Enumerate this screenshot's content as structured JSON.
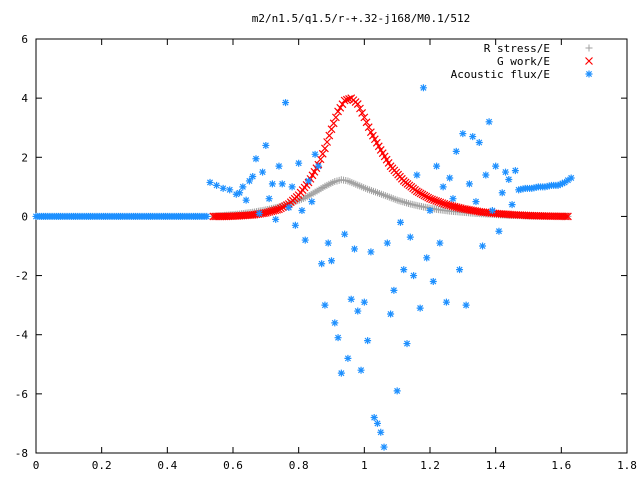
{
  "chart_data": {
    "type": "scatter",
    "title": "m2/n1.5/q1.5/r-+.32-j168/M0.1/512",
    "xlabel": "",
    "ylabel": "",
    "xlim": [
      0,
      1.8
    ],
    "ylim": [
      -8,
      6
    ],
    "x_ticks": [
      "0",
      "0.2",
      "0.4",
      "0.6",
      "0.8",
      "1",
      "1.2",
      "1.4",
      "1.6",
      "1.8"
    ],
    "y_ticks": [
      "-8",
      "-6",
      "-4",
      "-2",
      "0",
      "2",
      "4",
      "6"
    ],
    "grid": false,
    "legend_position": "top-right",
    "series": [
      {
        "name": "R stress/E",
        "color": "#a0a0a0",
        "marker": "plus",
        "points": [
          [
            0.54,
            0.0
          ],
          [
            0.58,
            0.04
          ],
          [
            0.62,
            0.08
          ],
          [
            0.66,
            0.14
          ],
          [
            0.7,
            0.22
          ],
          [
            0.74,
            0.32
          ],
          [
            0.78,
            0.46
          ],
          [
            0.82,
            0.63
          ],
          [
            0.85,
            0.82
          ],
          [
            0.88,
            1.02
          ],
          [
            0.91,
            1.18
          ],
          [
            0.93,
            1.24
          ],
          [
            0.95,
            1.2
          ],
          [
            0.98,
            1.06
          ],
          [
            1.01,
            0.92
          ],
          [
            1.04,
            0.8
          ],
          [
            1.07,
            0.68
          ],
          [
            1.1,
            0.55
          ],
          [
            1.14,
            0.42
          ],
          [
            1.18,
            0.32
          ],
          [
            1.22,
            0.24
          ],
          [
            1.26,
            0.18
          ],
          [
            1.3,
            0.14
          ],
          [
            1.34,
            0.1
          ],
          [
            1.38,
            0.08
          ],
          [
            1.42,
            0.05
          ],
          [
            1.46,
            0.03
          ],
          [
            1.5,
            0.02
          ],
          [
            1.55,
            0.01
          ],
          [
            1.6,
            0.0
          ],
          [
            1.62,
            0.0
          ]
        ]
      },
      {
        "name": "G work/E",
        "color": "#ff0000",
        "marker": "cross",
        "points": [
          [
            0.54,
            0.0
          ],
          [
            0.58,
            0.0
          ],
          [
            0.62,
            0.02
          ],
          [
            0.66,
            0.05
          ],
          [
            0.7,
            0.12
          ],
          [
            0.74,
            0.24
          ],
          [
            0.77,
            0.42
          ],
          [
            0.8,
            0.72
          ],
          [
            0.83,
            1.15
          ],
          [
            0.86,
            1.75
          ],
          [
            0.88,
            2.3
          ],
          [
            0.9,
            2.95
          ],
          [
            0.92,
            3.55
          ],
          [
            0.94,
            3.92
          ],
          [
            0.96,
            4.0
          ],
          [
            0.98,
            3.8
          ],
          [
            1.0,
            3.35
          ],
          [
            1.02,
            2.85
          ],
          [
            1.05,
            2.25
          ],
          [
            1.08,
            1.7
          ],
          [
            1.12,
            1.2
          ],
          [
            1.16,
            0.85
          ],
          [
            1.2,
            0.6
          ],
          [
            1.25,
            0.4
          ],
          [
            1.3,
            0.26
          ],
          [
            1.35,
            0.16
          ],
          [
            1.4,
            0.1
          ],
          [
            1.45,
            0.06
          ],
          [
            1.5,
            0.03
          ],
          [
            1.56,
            0.01
          ],
          [
            1.62,
            0.0
          ]
        ]
      },
      {
        "name": "Acoustic flux/E",
        "color": "#1e90ff",
        "marker": "star",
        "points": [
          [
            0.0,
            0.0
          ],
          [
            0.04,
            0.0
          ],
          [
            0.08,
            0.0
          ],
          [
            0.12,
            0.0
          ],
          [
            0.16,
            0.0
          ],
          [
            0.2,
            0.0
          ],
          [
            0.24,
            0.0
          ],
          [
            0.28,
            0.0
          ],
          [
            0.32,
            0.0
          ],
          [
            0.36,
            0.0
          ],
          [
            0.4,
            0.0
          ],
          [
            0.44,
            0.0
          ],
          [
            0.48,
            0.0
          ],
          [
            0.52,
            0.0
          ],
          [
            0.53,
            1.15
          ],
          [
            0.55,
            1.05
          ],
          [
            0.57,
            0.95
          ],
          [
            0.59,
            0.9
          ],
          [
            0.61,
            0.75
          ],
          [
            0.62,
            0.8
          ],
          [
            0.63,
            1.0
          ],
          [
            0.64,
            0.55
          ],
          [
            0.65,
            1.2
          ],
          [
            0.66,
            1.35
          ],
          [
            0.67,
            1.95
          ],
          [
            0.68,
            0.1
          ],
          [
            0.69,
            1.5
          ],
          [
            0.7,
            2.4
          ],
          [
            0.71,
            0.6
          ],
          [
            0.72,
            1.1
          ],
          [
            0.73,
            -0.1
          ],
          [
            0.74,
            1.7
          ],
          [
            0.75,
            1.1
          ],
          [
            0.76,
            3.85
          ],
          [
            0.77,
            0.3
          ],
          [
            0.78,
            1.0
          ],
          [
            0.79,
            -0.3
          ],
          [
            0.8,
            1.8
          ],
          [
            0.81,
            0.2
          ],
          [
            0.82,
            -0.8
          ],
          [
            0.83,
            1.2
          ],
          [
            0.84,
            0.5
          ],
          [
            0.85,
            2.1
          ],
          [
            0.86,
            1.7
          ],
          [
            0.87,
            -1.6
          ],
          [
            0.88,
            -3.0
          ],
          [
            0.89,
            -0.9
          ],
          [
            0.9,
            -1.5
          ],
          [
            0.91,
            -3.6
          ],
          [
            0.92,
            -4.1
          ],
          [
            0.93,
            -5.3
          ],
          [
            0.94,
            -0.6
          ],
          [
            0.95,
            -4.8
          ],
          [
            0.96,
            -2.8
          ],
          [
            0.97,
            -1.1
          ],
          [
            0.98,
            -3.2
          ],
          [
            0.99,
            -5.2
          ],
          [
            1.0,
            -2.9
          ],
          [
            1.01,
            -4.2
          ],
          [
            1.02,
            -1.2
          ],
          [
            1.03,
            -6.8
          ],
          [
            1.04,
            -7.0
          ],
          [
            1.05,
            -7.3
          ],
          [
            1.06,
            -7.8
          ],
          [
            1.07,
            -0.9
          ],
          [
            1.08,
            -3.3
          ],
          [
            1.09,
            -2.5
          ],
          [
            1.1,
            -5.9
          ],
          [
            1.11,
            -0.2
          ],
          [
            1.12,
            -1.8
          ],
          [
            1.13,
            -4.3
          ],
          [
            1.14,
            -0.7
          ],
          [
            1.15,
            -2.0
          ],
          [
            1.16,
            1.4
          ],
          [
            1.17,
            -3.1
          ],
          [
            1.18,
            4.35
          ],
          [
            1.19,
            -1.4
          ],
          [
            1.2,
            0.2
          ],
          [
            1.21,
            -2.2
          ],
          [
            1.22,
            1.7
          ],
          [
            1.23,
            -0.9
          ],
          [
            1.24,
            1.0
          ],
          [
            1.25,
            -2.9
          ],
          [
            1.26,
            1.3
          ],
          [
            1.27,
            0.6
          ],
          [
            1.28,
            2.2
          ],
          [
            1.29,
            -1.8
          ],
          [
            1.3,
            2.8
          ],
          [
            1.31,
            -3.0
          ],
          [
            1.32,
            1.1
          ],
          [
            1.33,
            2.7
          ],
          [
            1.34,
            0.5
          ],
          [
            1.35,
            2.5
          ],
          [
            1.36,
            -1.0
          ],
          [
            1.37,
            1.4
          ],
          [
            1.38,
            3.2
          ],
          [
            1.39,
            0.2
          ],
          [
            1.4,
            1.7
          ],
          [
            1.41,
            -0.5
          ],
          [
            1.42,
            0.8
          ],
          [
            1.43,
            1.5
          ],
          [
            1.44,
            1.25
          ],
          [
            1.45,
            0.4
          ],
          [
            1.46,
            1.55
          ],
          [
            1.47,
            0.9
          ],
          [
            1.49,
            0.95
          ],
          [
            1.51,
            0.95
          ],
          [
            1.53,
            1.0
          ],
          [
            1.55,
            1.0
          ],
          [
            1.57,
            1.05
          ],
          [
            1.59,
            1.05
          ],
          [
            1.61,
            1.15
          ],
          [
            1.63,
            1.3
          ]
        ]
      }
    ]
  }
}
